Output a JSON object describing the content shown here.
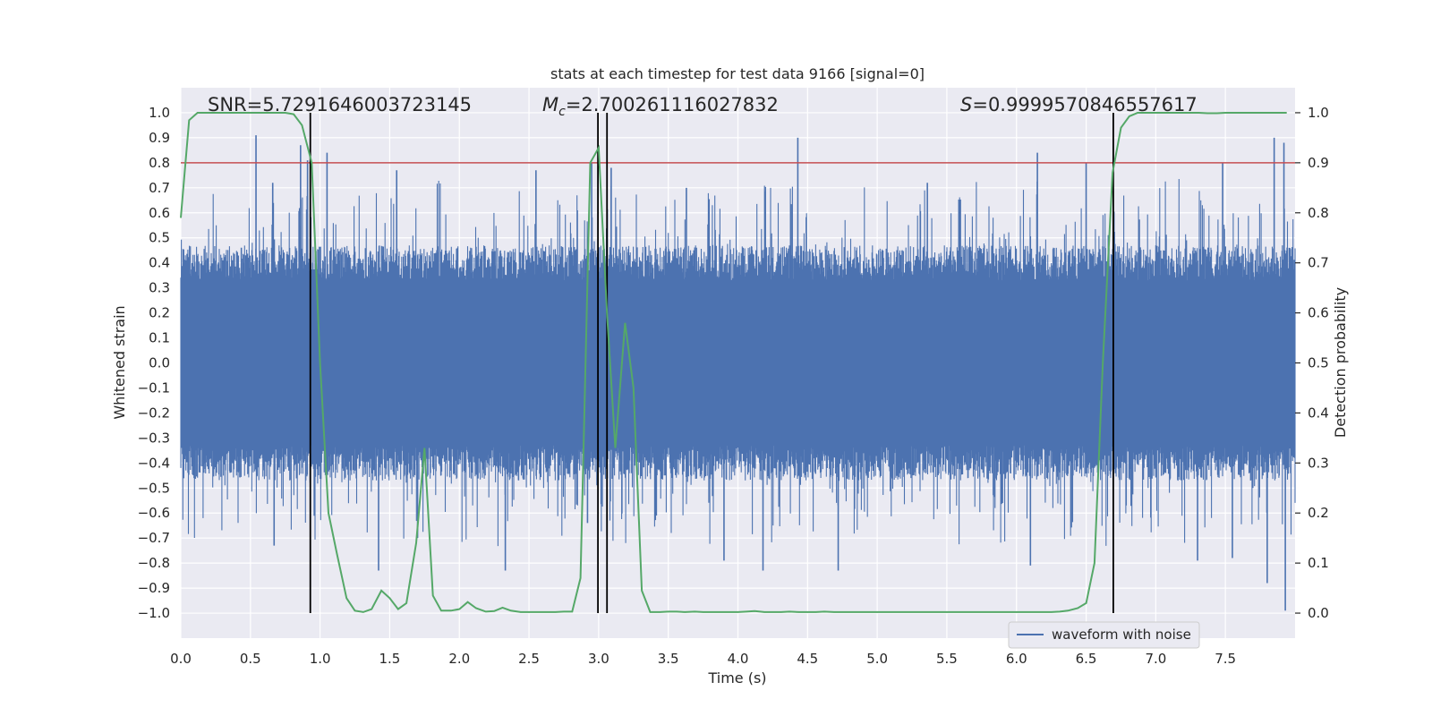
{
  "chart_data": {
    "type": "line",
    "title": "stats at each timestep for test data 9166 [signal=0]",
    "xlabel": "Time (s)",
    "ylabel_left": "Whitened strain",
    "ylabel_right": "Detection probability",
    "xlim": [
      0.0,
      8.0
    ],
    "ylim_left": [
      -1.1,
      1.1
    ],
    "ylim_right": [
      -0.05,
      1.05
    ],
    "x_ticks": [
      "0.0",
      "0.5",
      "1.0",
      "1.5",
      "2.0",
      "2.5",
      "3.0",
      "3.5",
      "4.0",
      "4.5",
      "5.0",
      "5.5",
      "6.0",
      "6.5",
      "7.0",
      "7.5"
    ],
    "y_left_ticks": [
      "1.0",
      "0.9",
      "0.8",
      "0.7",
      "0.6",
      "0.5",
      "0.4",
      "0.3",
      "0.2",
      "0.1",
      "0.0",
      "-0.1",
      "-0.2",
      "-0.3",
      "-0.4",
      "-0.5",
      "-0.6",
      "-0.7",
      "-0.8",
      "-0.9",
      "-1.0"
    ],
    "y_right_ticks": [
      "1.0",
      "0.9",
      "0.8",
      "0.7",
      "0.6",
      "0.5",
      "0.4",
      "0.3",
      "0.2",
      "0.1",
      "0.0"
    ],
    "grid": true,
    "legend_position": "bottom-right",
    "annotations": {
      "snr": "SNR=5.7291646003723145",
      "mc_symbol": "M",
      "mc_sub": "c",
      "mc_value": "=2.700261116027832",
      "s_symbol": "S",
      "s_value": "=0.9999570846557617"
    },
    "colors": {
      "waveform": "#4c72b0",
      "probability": "#55a868",
      "threshold": "#c44e52",
      "vlines": "#000000",
      "plot_bg": "#eaeaf2",
      "grid": "#ffffff"
    },
    "series": [
      {
        "name": "waveform with noise",
        "axis": "left",
        "style": "dense-noise",
        "band_lower": -0.4,
        "band_upper": 0.4,
        "core_lower": -0.2,
        "core_upper": 0.2,
        "spikes": [
          {
            "x": 0.54,
            "y": 0.91
          },
          {
            "x": 0.86,
            "y": 0.87
          },
          {
            "x": 0.91,
            "y": 0.81
          },
          {
            "x": 1.05,
            "y": 0.84
          },
          {
            "x": 1.55,
            "y": 0.77
          },
          {
            "x": 2.55,
            "y": 0.77
          },
          {
            "x": 2.95,
            "y": 0.8
          },
          {
            "x": 3.09,
            "y": 0.78
          },
          {
            "x": 4.43,
            "y": 0.9
          },
          {
            "x": 6.15,
            "y": 0.84
          },
          {
            "x": 6.5,
            "y": 0.8
          },
          {
            "x": 7.48,
            "y": 0.8
          },
          {
            "x": 7.85,
            "y": 0.9
          },
          {
            "x": 7.92,
            "y": 0.88
          },
          {
            "x": 0.66,
            "y": 0.72
          },
          {
            "x": 3.63,
            "y": 0.7
          },
          {
            "x": 5.36,
            "y": 0.72
          },
          {
            "x": 1.42,
            "y": -0.83
          },
          {
            "x": 2.33,
            "y": -0.83
          },
          {
            "x": 3.9,
            "y": -0.79
          },
          {
            "x": 4.18,
            "y": -0.83
          },
          {
            "x": 4.72,
            "y": -0.83
          },
          {
            "x": 6.1,
            "y": -0.81
          },
          {
            "x": 7.8,
            "y": -0.88
          },
          {
            "x": 7.93,
            "y": -0.99
          },
          {
            "x": 7.3,
            "y": -0.79
          },
          {
            "x": 0.67,
            "y": -0.73
          },
          {
            "x": 2.92,
            "y": -0.64
          },
          {
            "x": 3.06,
            "y": -0.69
          },
          {
            "x": 1.7,
            "y": -0.7
          },
          {
            "x": 7.55,
            "y": -0.78
          }
        ]
      },
      {
        "name": "",
        "axis": "right",
        "x": [
          0.0,
          0.06,
          0.12,
          0.19,
          0.25,
          0.31,
          0.37,
          0.44,
          0.5,
          0.56,
          0.62,
          0.69,
          0.75,
          0.81,
          0.87,
          0.94,
          1.0,
          1.06,
          1.12,
          1.19,
          1.25,
          1.31,
          1.37,
          1.44,
          1.5,
          1.56,
          1.62,
          1.69,
          1.75,
          1.81,
          1.87,
          1.94,
          2.0,
          2.06,
          2.12,
          2.19,
          2.25,
          2.31,
          2.37,
          2.44,
          2.5,
          2.56,
          2.62,
          2.69,
          2.75,
          2.81,
          2.87,
          2.94,
          3.0,
          3.06,
          3.12,
          3.19,
          3.25,
          3.31,
          3.37,
          3.44,
          3.5,
          3.56,
          3.62,
          3.69,
          3.75,
          3.81,
          3.87,
          3.94,
          4.0,
          4.06,
          4.12,
          4.19,
          4.25,
          4.31,
          4.37,
          4.44,
          4.5,
          4.56,
          4.62,
          4.69,
          4.75,
          4.81,
          4.87,
          4.94,
          5.0,
          5.06,
          5.12,
          5.19,
          5.25,
          5.31,
          5.37,
          5.44,
          5.5,
          5.56,
          5.62,
          5.69,
          5.75,
          5.81,
          5.87,
          5.94,
          6.0,
          6.06,
          6.12,
          6.19,
          6.25,
          6.31,
          6.37,
          6.44,
          6.5,
          6.56,
          6.62,
          6.69,
          6.75,
          6.81,
          6.87,
          6.94,
          7.0,
          7.06,
          7.12,
          7.19,
          7.25,
          7.31,
          7.37,
          7.44,
          7.5,
          7.56,
          7.62,
          7.69,
          7.75,
          7.81,
          7.87,
          7.94
        ],
        "y": [
          0.79,
          0.985,
          1.0,
          1.0,
          1.0,
          1.0,
          1.0,
          1.0,
          1.0,
          1.0,
          1.0,
          1.0,
          1.0,
          0.997,
          0.975,
          0.9,
          0.5,
          0.2,
          0.12,
          0.03,
          0.005,
          0.002,
          0.008,
          0.045,
          0.03,
          0.008,
          0.02,
          0.14,
          0.33,
          0.035,
          0.005,
          0.005,
          0.008,
          0.022,
          0.01,
          0.003,
          0.004,
          0.011,
          0.005,
          0.002,
          0.002,
          0.002,
          0.002,
          0.002,
          0.003,
          0.003,
          0.07,
          0.9,
          0.93,
          0.6,
          0.33,
          0.58,
          0.45,
          0.045,
          0.002,
          0.002,
          0.003,
          0.003,
          0.002,
          0.003,
          0.002,
          0.002,
          0.002,
          0.002,
          0.002,
          0.003,
          0.004,
          0.002,
          0.002,
          0.002,
          0.003,
          0.002,
          0.002,
          0.002,
          0.003,
          0.002,
          0.002,
          0.002,
          0.002,
          0.002,
          0.002,
          0.002,
          0.002,
          0.002,
          0.002,
          0.002,
          0.002,
          0.002,
          0.002,
          0.002,
          0.002,
          0.002,
          0.002,
          0.002,
          0.002,
          0.002,
          0.002,
          0.002,
          0.002,
          0.002,
          0.002,
          0.003,
          0.005,
          0.01,
          0.02,
          0.1,
          0.5,
          0.88,
          0.97,
          0.993,
          1.0,
          1.0,
          1.0,
          1.0,
          1.0,
          1.0,
          1.0,
          1.0,
          0.999,
          0.999,
          1.0,
          1.0,
          1.0,
          1.0,
          1.0,
          1.0,
          1.0,
          1.0
        ]
      }
    ],
    "threshold_line": {
      "axis": "right",
      "y": 0.9
    },
    "vertical_lines": [
      {
        "x": 0.93,
        "y_from": 0.0,
        "y_to": 1.0
      },
      {
        "x": 2.995,
        "y_from": 0.0,
        "y_to": 1.0
      },
      {
        "x": 3.06,
        "y_from": 0.0,
        "y_to": 1.0
      },
      {
        "x": 6.695,
        "y_from": 0.0,
        "y_to": 1.0
      }
    ]
  }
}
